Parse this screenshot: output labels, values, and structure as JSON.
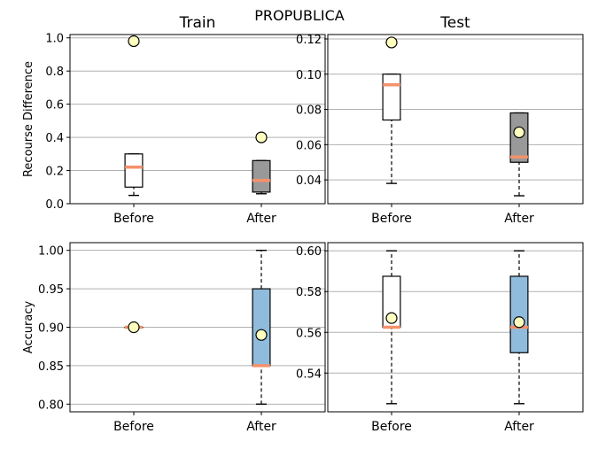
{
  "figure": {
    "title": "PROPUBLICA"
  },
  "colors": {
    "before_box": "#ffffff",
    "after_recourse_box": "#999999",
    "after_accuracy_box": "#8fbcdc",
    "median": "#f4916b",
    "mean_marker": "#ffffbf",
    "grid": "#b0b0b0"
  },
  "chart_data": [
    {
      "type": "box",
      "panel": "top-left",
      "title": "Train",
      "ylabel": "Recourse Difference",
      "xlabel": "",
      "categories": [
        "Before",
        "After"
      ],
      "ylim": [
        0.0,
        1.02
      ],
      "yticks": [
        0.0,
        0.2,
        0.4,
        0.6,
        0.8,
        1.0
      ],
      "ytick_labels": [
        "0.0",
        "0.2",
        "0.4",
        "0.6",
        "0.8",
        "1.0"
      ],
      "grid": "horizontal",
      "boxes": [
        {
          "whisker_low": 0.05,
          "q1": 0.1,
          "median": 0.22,
          "q3": 0.3,
          "whisker_high": 0.3,
          "mean": 0.98
        },
        {
          "whisker_low": 0.06,
          "q1": 0.07,
          "median": 0.14,
          "q3": 0.26,
          "whisker_high": 0.26,
          "mean": 0.4
        }
      ]
    },
    {
      "type": "box",
      "panel": "top-right",
      "title": "Test",
      "ylabel": "",
      "xlabel": "",
      "categories": [
        "Before",
        "After"
      ],
      "ylim": [
        0.0265,
        0.1225
      ],
      "yticks": [
        0.04,
        0.06,
        0.08,
        0.1,
        0.12
      ],
      "ytick_labels": [
        "0.04",
        "0.06",
        "0.08",
        "0.10",
        "0.12"
      ],
      "grid": "horizontal",
      "boxes": [
        {
          "whisker_low": 0.038,
          "q1": 0.074,
          "median": 0.094,
          "q3": 0.1,
          "whisker_high": 0.1,
          "mean": 0.118
        },
        {
          "whisker_low": 0.031,
          "q1": 0.05,
          "median": 0.053,
          "q3": 0.078,
          "whisker_high": 0.078,
          "mean": 0.067
        }
      ]
    },
    {
      "type": "box",
      "panel": "bottom-left",
      "title": "",
      "ylabel": "Accuracy",
      "xlabel": "",
      "categories": [
        "Before",
        "After"
      ],
      "ylim": [
        0.79,
        1.01
      ],
      "yticks": [
        0.8,
        0.85,
        0.9,
        0.95,
        1.0
      ],
      "ytick_labels": [
        "0.80",
        "0.85",
        "0.90",
        "0.95",
        "1.00"
      ],
      "grid": "horizontal",
      "boxes": [
        {
          "whisker_low": 0.9,
          "q1": 0.9,
          "median": 0.9,
          "q3": 0.9,
          "whisker_high": 0.9,
          "mean": 0.9
        },
        {
          "whisker_low": 0.8,
          "q1": 0.85,
          "median": 0.85,
          "q3": 0.95,
          "whisker_high": 1.0,
          "mean": 0.89
        }
      ]
    },
    {
      "type": "box",
      "panel": "bottom-right",
      "title": "",
      "ylabel": "",
      "xlabel": "",
      "categories": [
        "Before",
        "After"
      ],
      "ylim": [
        0.521,
        0.604
      ],
      "yticks": [
        0.54,
        0.56,
        0.58,
        0.6
      ],
      "ytick_labels": [
        "0.54",
        "0.56",
        "0.58",
        "0.60"
      ],
      "grid": "horizontal",
      "boxes": [
        {
          "whisker_low": 0.525,
          "q1": 0.5625,
          "median": 0.5625,
          "q3": 0.5875,
          "whisker_high": 0.6,
          "mean": 0.567
        },
        {
          "whisker_low": 0.525,
          "q1": 0.55,
          "median": 0.5625,
          "q3": 0.5875,
          "whisker_high": 0.6,
          "mean": 0.565
        }
      ]
    }
  ]
}
